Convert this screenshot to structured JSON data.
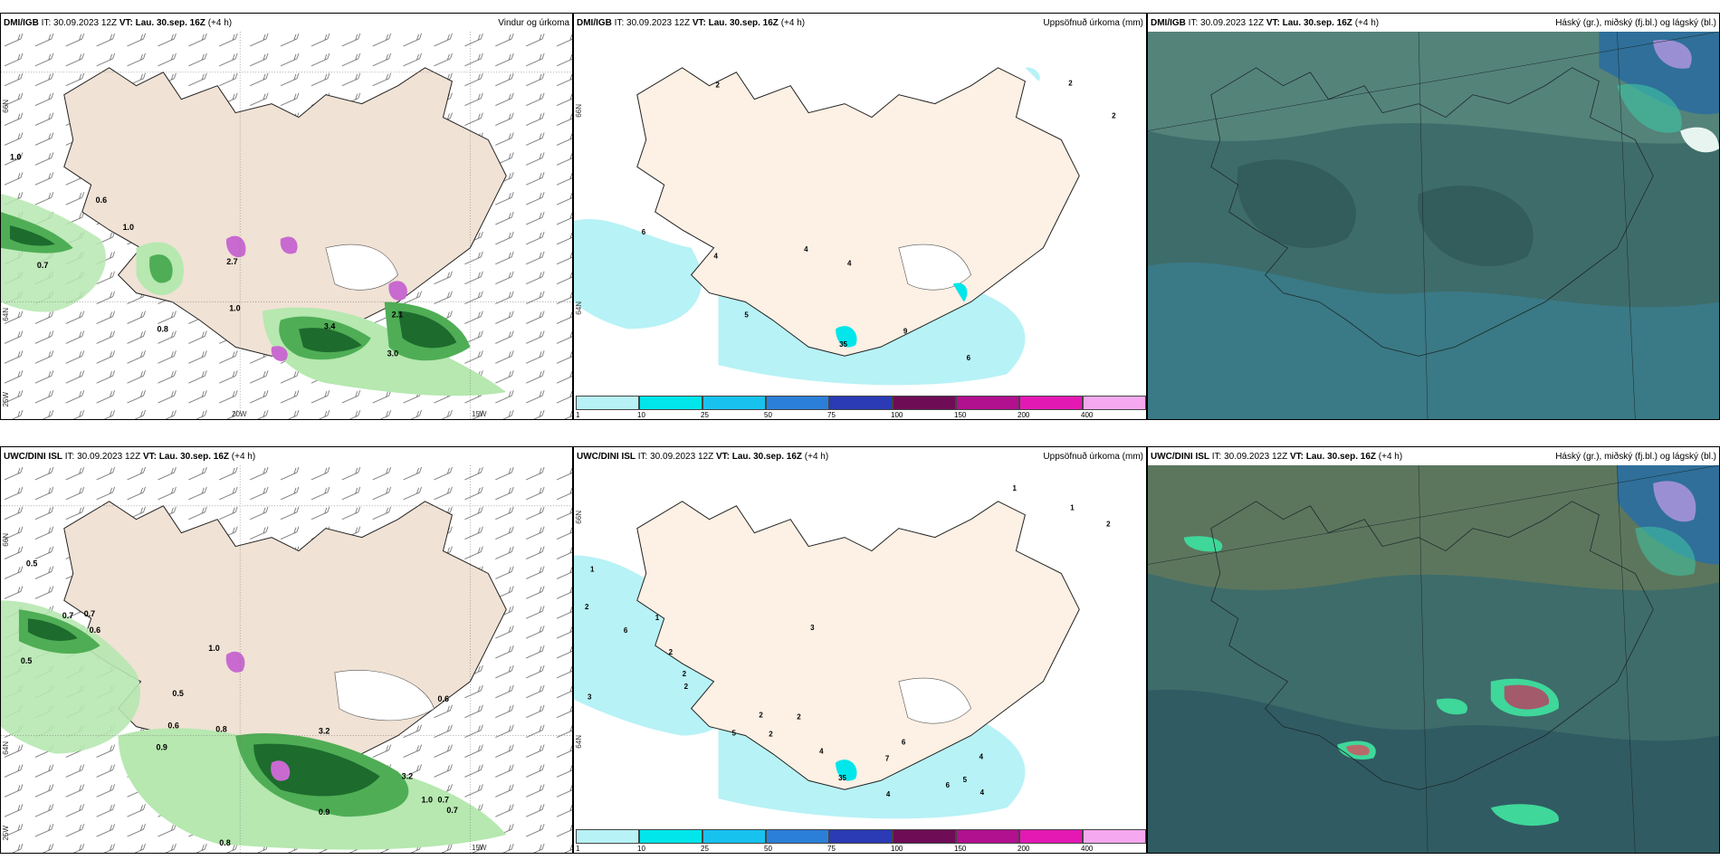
{
  "panels": [
    {
      "source": "DMI/IGB",
      "it_label": "IT:",
      "it": "30.09.2023 12Z",
      "vt_label": "VT:",
      "vt": "Lau. 30.sep. 16Z",
      "lead": "(+4 h)",
      "title": "Vindur og úrkoma",
      "axis": {
        "lat_top": "66N",
        "lat_mid": "64N",
        "lon_left": "25W",
        "lon_mid": "20W",
        "lon_right": "15W"
      },
      "values": [
        "1.0",
        "0.6",
        "1.0",
        "0.7",
        "0.8",
        "1.0",
        "3.4",
        "3.0",
        "2.1",
        "2.7"
      ]
    },
    {
      "source": "DMI/IGB",
      "it_label": "IT:",
      "it": "30.09.2023 12Z",
      "vt_label": "VT:",
      "vt": "Lau. 30.sep. 16Z",
      "lead": "(+4 h)",
      "title": "Uppsöfnuð úrkoma (mm)",
      "axis": {
        "lat_top": "66N",
        "lat_mid": "64N"
      },
      "values": [
        "2",
        "2",
        "2",
        "6",
        "4",
        "4",
        "4",
        "5",
        "9",
        "6",
        "35"
      ]
    },
    {
      "source": "DMI/IGB",
      "it_label": "IT:",
      "it": "30.09.2023 12Z",
      "vt_label": "VT:",
      "vt": "Lau. 30.sep. 16Z",
      "lead": "(+4 h)",
      "title": "Háský (gr.), miðský (fj.bl.) og lágský (bl.)"
    },
    {
      "source": "UWC/DINI ISL",
      "it_label": "IT:",
      "it": "30.09.2023 12Z",
      "vt_label": "VT:",
      "vt": "Lau. 30.sep. 16Z",
      "lead": "(+4 h)",
      "title": "",
      "axis": {
        "lat_top": "66N",
        "lat_mid": "64N",
        "lon_left": "25W",
        "lon_right": "15W"
      },
      "values": [
        "0.5",
        "0.7",
        "0.7",
        "0.6",
        "0.5",
        "1.0",
        "0.5",
        "0.6",
        "0.8",
        "0.9",
        "0.9",
        "0.8",
        "3.2",
        "3.2",
        "1.0",
        "0.7",
        "0.7",
        "0.6"
      ]
    },
    {
      "source": "UWC/DINI ISL",
      "it_label": "IT:",
      "it": "30.09.2023 12Z",
      "vt_label": "VT:",
      "vt": "Lau. 30.sep. 16Z",
      "lead": "(+4 h)",
      "title": "Uppsöfnuð úrkoma (mm)",
      "axis": {
        "lat_top": "66N",
        "lat_mid": "64N"
      },
      "values": [
        "1",
        "2",
        "1",
        "6",
        "3",
        "2",
        "2",
        "2",
        "5",
        "2",
        "2",
        "2",
        "4",
        "3",
        "7",
        "6",
        "4",
        "5",
        "4",
        "4",
        "6",
        "35",
        "1",
        "1",
        "2"
      ]
    },
    {
      "source": "UWC/DINI ISL",
      "it_label": "IT:",
      "it": "30.09.2023 12Z",
      "vt_label": "VT:",
      "vt": "Lau. 30.sep. 16Z",
      "lead": "(+4 h)",
      "title": "Háský (gr.), miðský (fj.bl.) og lágský (bl.)"
    }
  ],
  "legend": {
    "ticks": [
      "1",
      "10",
      "25",
      "50",
      "75",
      "100",
      "150",
      "200",
      "400"
    ],
    "colors": [
      "#b7f2f6",
      "#00e6ea",
      "#18c2ef",
      "#2c7fd8",
      "#2a3bb5",
      "#6e0c56",
      "#b1108e",
      "#e419b4",
      "#f5a8ef"
    ]
  },
  "colors": {
    "land": "#f0e2d4",
    "rain_light": "#b6e8b0",
    "rain_mid": "#4fae55",
    "rain_dark": "#1d6b2d",
    "rain_purple": "#c86ad0",
    "cloud_base": "#3e6c6a",
    "cloud_mid": "#2f5557",
    "cloud_low": "#3a7b8a"
  }
}
